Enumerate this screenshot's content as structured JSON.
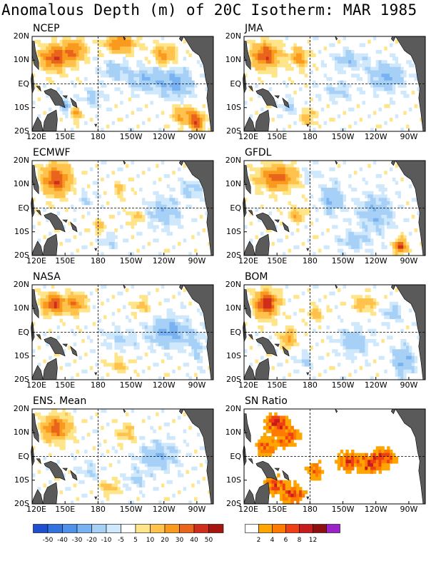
{
  "figure": {
    "title": "Anomalous Depth (m) of 20C Isotherm: MAR 1985"
  },
  "colors": {
    "land": "#5a5a5a",
    "anomaly_scale": [
      "#1f4fd1",
      "#3373e0",
      "#4f92ea",
      "#79b2f2",
      "#a7d0f7",
      "#cfe8fb",
      "#ffffff",
      "#ffe58a",
      "#ffc34d",
      "#f99a1e",
      "#e9651b",
      "#cf2f1a",
      "#a8140f",
      "#7a0b08",
      "#9a22c8"
    ],
    "sn_scale": [
      "#ffffff",
      "#ffa500",
      "#ff7a00",
      "#ef3f13",
      "#c81c1c",
      "#8f0e0e",
      "#9a22c8"
    ]
  },
  "chart_data": [
    {
      "type": "heatmap",
      "panel_title": "NCEP",
      "x_ticks": [
        "120E",
        "150E",
        "180",
        "150W",
        "120W",
        "90W"
      ],
      "y_ticks": [
        "20N",
        "10N",
        "EQ",
        "10S",
        "20S"
      ]
    },
    {
      "type": "heatmap",
      "panel_title": "JMA",
      "x_ticks": [
        "120E",
        "150E",
        "180",
        "150W",
        "120W",
        "90W"
      ],
      "y_ticks": [
        "20N",
        "10N",
        "EQ",
        "10S",
        "20S"
      ]
    },
    {
      "type": "heatmap",
      "panel_title": "ECMWF",
      "x_ticks": [
        "120E",
        "150E",
        "180",
        "150W",
        "120W",
        "90W"
      ],
      "y_ticks": [
        "20N",
        "10N",
        "EQ",
        "10S",
        "20S"
      ]
    },
    {
      "type": "heatmap",
      "panel_title": "GFDL",
      "x_ticks": [
        "120E",
        "150E",
        "180",
        "150W",
        "120W",
        "90W"
      ],
      "y_ticks": [
        "20N",
        "10N",
        "EQ",
        "10S",
        "20S"
      ]
    },
    {
      "type": "heatmap",
      "panel_title": "NASA",
      "x_ticks": [
        "120E",
        "150E",
        "180",
        "150W",
        "120W",
        "90W"
      ],
      "y_ticks": [
        "20N",
        "10N",
        "EQ",
        "10S",
        "20S"
      ]
    },
    {
      "type": "heatmap",
      "panel_title": "BOM",
      "x_ticks": [
        "120E",
        "150E",
        "180",
        "150W",
        "120W",
        "90W"
      ],
      "y_ticks": [
        "20N",
        "10N",
        "EQ",
        "10S",
        "20S"
      ]
    },
    {
      "type": "heatmap",
      "panel_title": "ENS. Mean",
      "x_ticks": [
        "120E",
        "150E",
        "180",
        "150W",
        "120W",
        "90W"
      ],
      "y_ticks": [
        "20N",
        "10N",
        "EQ",
        "10S",
        "20S"
      ]
    },
    {
      "type": "heatmap",
      "panel_title": "SN Ratio",
      "x_ticks": [
        "120E",
        "150E",
        "180",
        "150W",
        "120W",
        "90W"
      ],
      "y_ticks": [
        "20N",
        "10N",
        "EQ",
        "10S",
        "20S"
      ]
    }
  ],
  "colorbars": {
    "anomaly": {
      "labels": [
        "-50",
        "-40",
        "-30",
        "-20",
        "-10",
        "-5",
        "5",
        "10",
        "20",
        "30",
        "40",
        "50"
      ]
    },
    "sn_ratio": {
      "labels": [
        "2",
        "4",
        "6",
        "8",
        "12"
      ]
    }
  }
}
